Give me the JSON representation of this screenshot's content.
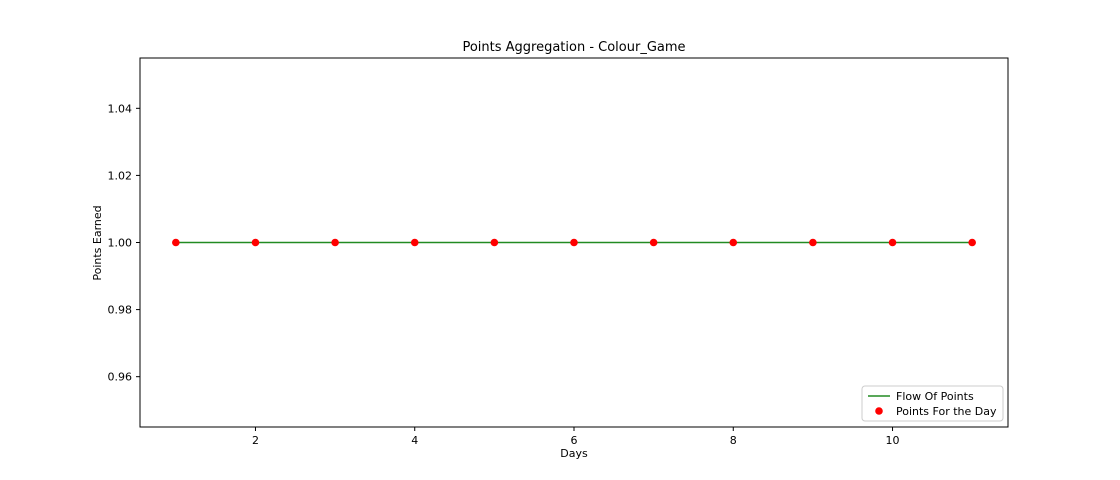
{
  "chart_data": {
    "type": "line",
    "title": "Points Aggregation - Colour_Game",
    "xlabel": "Days",
    "ylabel": "Points Earned",
    "xlim": [
      0.55,
      11.45
    ],
    "ylim": [
      0.945,
      1.055
    ],
    "x_ticks": [
      2,
      4,
      6,
      8,
      10
    ],
    "x_tick_labels": [
      "2",
      "4",
      "6",
      "8",
      "10"
    ],
    "y_ticks": [
      0.96,
      0.98,
      1.0,
      1.02,
      1.04
    ],
    "y_tick_labels": [
      "0.96",
      "0.98",
      "1.00",
      "1.02",
      "1.04"
    ],
    "grid": false,
    "legend_position": "lower-right",
    "series": [
      {
        "name": "Flow Of Points",
        "kind": "line",
        "color": "#228b22",
        "x": [
          1,
          2,
          3,
          4,
          5,
          6,
          7,
          8,
          9,
          10,
          11
        ],
        "y": [
          1,
          1,
          1,
          1,
          1,
          1,
          1,
          1,
          1,
          1,
          1
        ]
      },
      {
        "name": "Points For the Day",
        "kind": "scatter",
        "color": "#ff0000",
        "x": [
          1,
          2,
          3,
          4,
          5,
          6,
          7,
          8,
          9,
          10,
          11
        ],
        "y": [
          1,
          1,
          1,
          1,
          1,
          1,
          1,
          1,
          1,
          1,
          1
        ]
      }
    ]
  }
}
